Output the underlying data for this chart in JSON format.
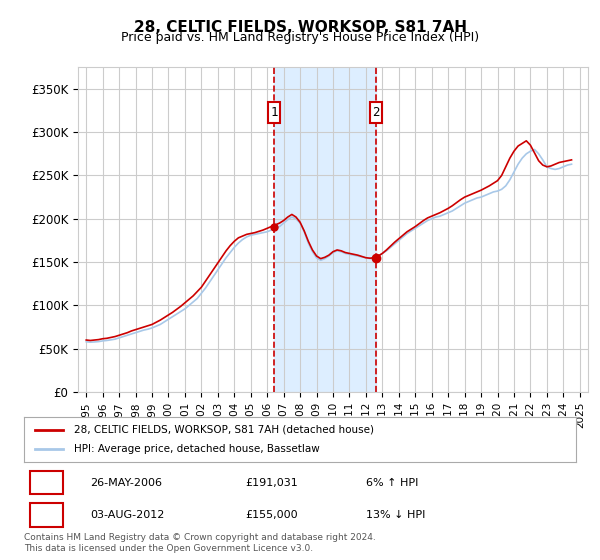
{
  "title": "28, CELTIC FIELDS, WORKSOP, S81 7AH",
  "subtitle": "Price paid vs. HM Land Registry's House Price Index (HPI)",
  "legend_line1": "28, CELTIC FIELDS, WORKSOP, S81 7AH (detached house)",
  "legend_line2": "HPI: Average price, detached house, Bassetlaw",
  "transaction1_label": "1",
  "transaction1_date": "26-MAY-2006",
  "transaction1_price": "£191,031",
  "transaction1_hpi": "6% ↑ HPI",
  "transaction1_year": 2006.4,
  "transaction2_label": "2",
  "transaction2_date": "03-AUG-2012",
  "transaction2_price": "£155,000",
  "transaction2_hpi": "13% ↓ HPI",
  "transaction2_year": 2012.6,
  "footnote": "Contains HM Land Registry data © Crown copyright and database right 2024.\nThis data is licensed under the Open Government Licence v3.0.",
  "ylabel_ticks": [
    "£0",
    "£50K",
    "£100K",
    "£150K",
    "£200K",
    "£250K",
    "£300K",
    "£350K"
  ],
  "ytick_values": [
    0,
    50000,
    100000,
    150000,
    200000,
    250000,
    300000,
    350000
  ],
  "ylim": [
    0,
    375000
  ],
  "xlim_start": 1994.5,
  "xlim_end": 2025.5,
  "background_color": "#ffffff",
  "grid_color": "#cccccc",
  "hpi_line_color": "#a8c8e8",
  "property_line_color": "#cc0000",
  "shade_color": "#ddeeff",
  "vline_color": "#cc0000",
  "marker_box_color": "#cc0000",
  "hpi_data_x": [
    1995,
    1995.25,
    1995.5,
    1995.75,
    1996,
    1996.25,
    1996.5,
    1996.75,
    1997,
    1997.25,
    1997.5,
    1997.75,
    1998,
    1998.25,
    1998.5,
    1998.75,
    1999,
    1999.25,
    1999.5,
    1999.75,
    2000,
    2000.25,
    2000.5,
    2000.75,
    2001,
    2001.25,
    2001.5,
    2001.75,
    2002,
    2002.25,
    2002.5,
    2002.75,
    2003,
    2003.25,
    2003.5,
    2003.75,
    2004,
    2004.25,
    2004.5,
    2004.75,
    2005,
    2005.25,
    2005.5,
    2005.75,
    2006,
    2006.25,
    2006.5,
    2006.75,
    2007,
    2007.25,
    2007.5,
    2007.75,
    2008,
    2008.25,
    2008.5,
    2008.75,
    2009,
    2009.25,
    2009.5,
    2009.75,
    2010,
    2010.25,
    2010.5,
    2010.75,
    2011,
    2011.25,
    2011.5,
    2011.75,
    2012,
    2012.25,
    2012.5,
    2012.75,
    2013,
    2013.25,
    2013.5,
    2013.75,
    2014,
    2014.25,
    2014.5,
    2014.75,
    2015,
    2015.25,
    2015.5,
    2015.75,
    2016,
    2016.25,
    2016.5,
    2016.75,
    2017,
    2017.25,
    2017.5,
    2017.75,
    2018,
    2018.25,
    2018.5,
    2018.75,
    2019,
    2019.25,
    2019.5,
    2019.75,
    2020,
    2020.25,
    2020.5,
    2020.75,
    2021,
    2021.25,
    2021.5,
    2021.75,
    2022,
    2022.25,
    2022.5,
    2022.75,
    2023,
    2023.25,
    2023.5,
    2023.75,
    2024,
    2024.25,
    2024.5
  ],
  "hpi_data_y": [
    58000,
    57500,
    57800,
    58200,
    59000,
    59500,
    60200,
    61000,
    62500,
    64000,
    65500,
    67000,
    68500,
    70000,
    71500,
    72500,
    74000,
    76000,
    78000,
    81000,
    84000,
    87000,
    90000,
    93000,
    96000,
    100000,
    104000,
    108000,
    114000,
    120000,
    127000,
    134000,
    141000,
    148000,
    155000,
    161000,
    167000,
    172000,
    176000,
    179000,
    181000,
    182000,
    183000,
    184000,
    185000,
    187000,
    189000,
    191000,
    195000,
    199000,
    202000,
    200000,
    195000,
    185000,
    172000,
    162000,
    155000,
    152000,
    154000,
    157000,
    161000,
    163000,
    162000,
    160000,
    159000,
    158000,
    157000,
    156000,
    155000,
    154000,
    155000,
    157000,
    160000,
    163000,
    167000,
    171000,
    175000,
    179000,
    183000,
    186000,
    189000,
    192000,
    195000,
    198000,
    200000,
    202000,
    203000,
    205000,
    207000,
    209000,
    212000,
    215000,
    218000,
    220000,
    222000,
    224000,
    225000,
    227000,
    229000,
    231000,
    232000,
    234000,
    238000,
    245000,
    254000,
    263000,
    270000,
    275000,
    278000,
    280000,
    275000,
    268000,
    260000,
    258000,
    257000,
    258000,
    260000,
    262000,
    263000
  ],
  "prop_data_x": [
    1995,
    1995.25,
    1995.5,
    1995.75,
    1996,
    1996.25,
    1996.5,
    1996.75,
    1997,
    1997.25,
    1997.5,
    1997.75,
    1998,
    1998.25,
    1998.5,
    1998.75,
    1999,
    1999.25,
    1999.5,
    1999.75,
    2000,
    2000.25,
    2000.5,
    2000.75,
    2001,
    2001.25,
    2001.5,
    2001.75,
    2002,
    2002.25,
    2002.5,
    2002.75,
    2003,
    2003.25,
    2003.5,
    2003.75,
    2004,
    2004.25,
    2004.5,
    2004.75,
    2005,
    2005.25,
    2005.5,
    2005.75,
    2006,
    2006.25,
    2006.5,
    2006.75,
    2007,
    2007.25,
    2007.5,
    2007.75,
    2008,
    2008.25,
    2008.5,
    2008.75,
    2009,
    2009.25,
    2009.5,
    2009.75,
    2010,
    2010.25,
    2010.5,
    2010.75,
    2011,
    2011.25,
    2011.5,
    2011.75,
    2012,
    2012.25,
    2012.5,
    2012.75,
    2013,
    2013.25,
    2013.5,
    2013.75,
    2014,
    2014.25,
    2014.5,
    2014.75,
    2015,
    2015.25,
    2015.5,
    2015.75,
    2016,
    2016.25,
    2016.5,
    2016.75,
    2017,
    2017.25,
    2017.5,
    2017.75,
    2018,
    2018.25,
    2018.5,
    2018.75,
    2019,
    2019.25,
    2019.5,
    2019.75,
    2020,
    2020.25,
    2020.5,
    2020.75,
    2021,
    2021.25,
    2021.5,
    2021.75,
    2022,
    2022.25,
    2022.5,
    2022.75,
    2023,
    2023.25,
    2023.5,
    2023.75,
    2024,
    2024.25,
    2024.5
  ],
  "prop_data_y": [
    60000,
    59500,
    60000,
    60500,
    61500,
    62000,
    63000,
    64000,
    65500,
    67000,
    68500,
    70500,
    72000,
    73500,
    75000,
    76500,
    78000,
    80500,
    83000,
    86000,
    89000,
    92000,
    95500,
    99000,
    103000,
    107000,
    111000,
    116000,
    121000,
    128000,
    135000,
    142000,
    149000,
    156000,
    163000,
    169000,
    174000,
    178000,
    180000,
    182000,
    183000,
    184000,
    185500,
    187000,
    189000,
    191031,
    193000,
    195000,
    198000,
    202000,
    205000,
    202000,
    196000,
    186000,
    174000,
    164000,
    157000,
    154000,
    155500,
    158000,
    162000,
    164000,
    163000,
    161000,
    160000,
    159000,
    158000,
    156500,
    155000,
    154500,
    155000,
    157000,
    160000,
    164000,
    168500,
    173000,
    177000,
    181000,
    185000,
    188000,
    191000,
    194500,
    198000,
    201000,
    203000,
    205000,
    207000,
    209500,
    212000,
    215000,
    218500,
    222000,
    225000,
    227000,
    229000,
    231000,
    233000,
    235500,
    238000,
    241000,
    244000,
    250000,
    260000,
    270000,
    278000,
    284000,
    287000,
    290000,
    285000,
    276000,
    267000,
    262000,
    260000,
    261000,
    263000,
    265000,
    266000,
    267000,
    268000
  ]
}
